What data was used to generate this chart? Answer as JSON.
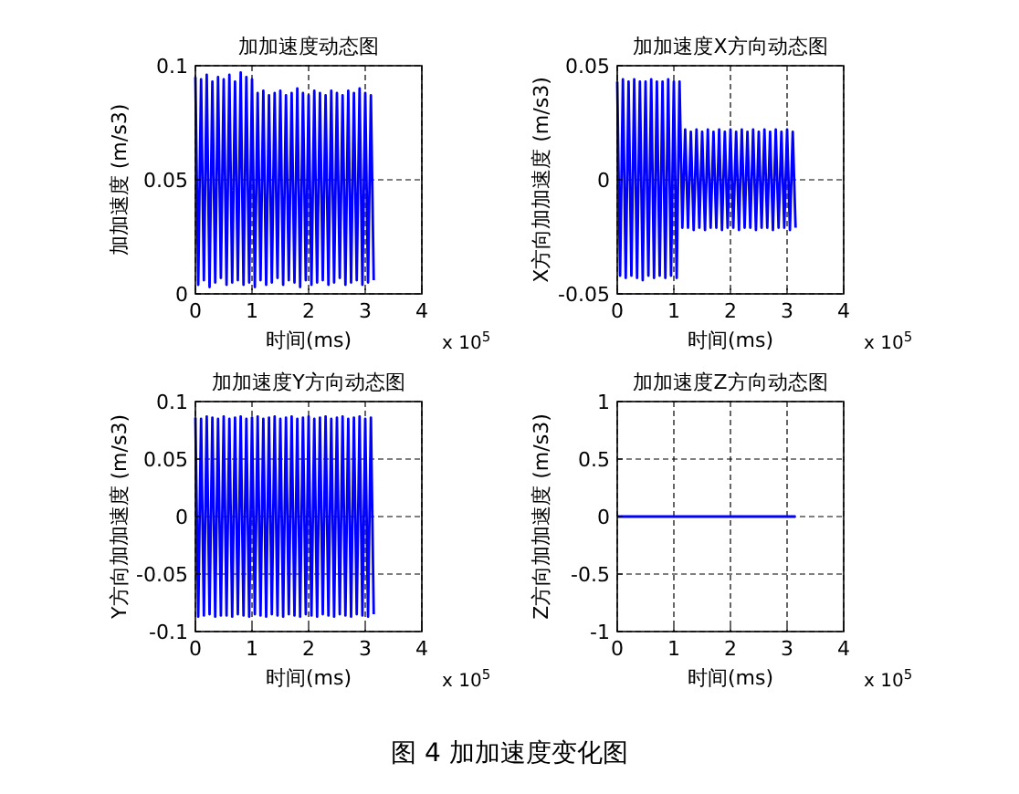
{
  "chart_data": [
    {
      "type": "line",
      "title": "加加速度动态图",
      "xlabel": "时间(ms)",
      "ylabel": "加加速度 (m/s3)",
      "annotations": [
        "x 10$^{5}$"
      ],
      "grid": true,
      "color": "#0000ff",
      "xlim": [
        0,
        4
      ],
      "xticks": [
        0,
        1,
        2,
        3,
        4
      ],
      "ylim": [
        0,
        0.1
      ],
      "yticks": [
        0,
        0.05,
        0.1
      ],
      "x": [
        0,
        0.05,
        0.1,
        0.15,
        0.2,
        0.25,
        0.3,
        0.35,
        0.4,
        0.45,
        0.5,
        0.55,
        0.6,
        0.65,
        0.7,
        0.75,
        0.8,
        0.85,
        0.9,
        0.95,
        1,
        1.05,
        1.1,
        1.15,
        1.2,
        1.25,
        1.3,
        1.35,
        1.4,
        1.45,
        1.5,
        1.55,
        1.6,
        1.65,
        1.7,
        1.75,
        1.8,
        1.85,
        1.9,
        1.95,
        2,
        2.05,
        2.1,
        2.15,
        2.2,
        2.25,
        2.3,
        2.35,
        2.4,
        2.45,
        2.5,
        2.55,
        2.6,
        2.65,
        2.7,
        2.75,
        2.8,
        2.85,
        2.9,
        2.95,
        3,
        3.05,
        3.1,
        3.15
      ],
      "values": [
        0.095,
        0.004,
        0.094,
        0.006,
        0.096,
        0.003,
        0.093,
        0.005,
        0.095,
        0.007,
        0.094,
        0.004,
        0.096,
        0.005,
        0.093,
        0.006,
        0.097,
        0.004,
        0.095,
        0.005,
        0.094,
        0.003,
        0.088,
        0.006,
        0.089,
        0.004,
        0.087,
        0.005,
        0.088,
        0.007,
        0.089,
        0.004,
        0.087,
        0.006,
        0.088,
        0.005,
        0.09,
        0.003,
        0.088,
        0.006,
        0.087,
        0.004,
        0.089,
        0.005,
        0.088,
        0.006,
        0.087,
        0.004,
        0.089,
        0.005,
        0.088,
        0.007,
        0.087,
        0.004,
        0.089,
        0.005,
        0.088,
        0.006,
        0.09,
        0.004,
        0.088,
        0.005,
        0.087,
        0.006
      ]
    },
    {
      "type": "line",
      "title": "加加速度X方向动态图",
      "xlabel": "时间(ms)",
      "ylabel": "X方向加加速度 (m/s3)",
      "annotations": [
        "x 10$^{5}$"
      ],
      "grid": true,
      "color": "#0000ff",
      "xlim": [
        0,
        4
      ],
      "xticks": [
        0,
        1,
        2,
        3,
        4
      ],
      "ylim": [
        -0.05,
        0.05
      ],
      "yticks": [
        -0.05,
        0,
        0.05
      ],
      "x": [
        0,
        0.05,
        0.1,
        0.15,
        0.2,
        0.25,
        0.3,
        0.35,
        0.4,
        0.45,
        0.5,
        0.55,
        0.6,
        0.65,
        0.7,
        0.75,
        0.8,
        0.85,
        0.9,
        0.95,
        1,
        1.05,
        1.1,
        1.15,
        1.2,
        1.25,
        1.3,
        1.35,
        1.4,
        1.45,
        1.5,
        1.55,
        1.6,
        1.65,
        1.7,
        1.75,
        1.8,
        1.85,
        1.9,
        1.95,
        2,
        2.05,
        2.1,
        2.15,
        2.2,
        2.25,
        2.3,
        2.35,
        2.4,
        2.45,
        2.5,
        2.55,
        2.6,
        2.65,
        2.7,
        2.75,
        2.8,
        2.85,
        2.9,
        2.95,
        3,
        3.05,
        3.1,
        3.15
      ],
      "values": [
        0.043,
        -0.042,
        0.044,
        -0.043,
        0.043,
        -0.042,
        0.044,
        -0.043,
        0.043,
        -0.044,
        0.043,
        -0.042,
        0.044,
        -0.043,
        0.043,
        -0.042,
        0.043,
        -0.043,
        0.044,
        -0.042,
        0.043,
        -0.043,
        0.043,
        -0.021,
        0.022,
        -0.021,
        0.021,
        -0.022,
        0.022,
        -0.021,
        0.021,
        -0.022,
        0.022,
        -0.021,
        0.021,
        -0.021,
        0.022,
        -0.022,
        0.021,
        -0.021,
        0.022,
        -0.021,
        0.021,
        -0.022,
        0.022,
        -0.021,
        0.021,
        -0.021,
        0.022,
        -0.022,
        0.021,
        -0.021,
        0.022,
        -0.021,
        0.021,
        -0.022,
        0.022,
        -0.021,
        0.021,
        -0.021,
        0.022,
        -0.022,
        0.021,
        -0.021
      ]
    },
    {
      "type": "line",
      "title": "加加速度Y方向动态图",
      "xlabel": "时间(ms)",
      "ylabel": "Y方向加加速度 (m/s3)",
      "annotations": [
        "x 10$^{5}$"
      ],
      "grid": true,
      "color": "#0000ff",
      "xlim": [
        0,
        4
      ],
      "xticks": [
        0,
        1,
        2,
        3,
        4
      ],
      "ylim": [
        -0.1,
        0.1
      ],
      "yticks": [
        -0.1,
        -0.05,
        0,
        0.05,
        0.1
      ],
      "x": [
        0,
        0.05,
        0.1,
        0.15,
        0.2,
        0.25,
        0.3,
        0.35,
        0.4,
        0.45,
        0.5,
        0.55,
        0.6,
        0.65,
        0.7,
        0.75,
        0.8,
        0.85,
        0.9,
        0.95,
        1,
        1.05,
        1.1,
        1.15,
        1.2,
        1.25,
        1.3,
        1.35,
        1.4,
        1.45,
        1.5,
        1.55,
        1.6,
        1.65,
        1.7,
        1.75,
        1.8,
        1.85,
        1.9,
        1.95,
        2,
        2.05,
        2.1,
        2.15,
        2.2,
        2.25,
        2.3,
        2.35,
        2.4,
        2.45,
        2.5,
        2.55,
        2.6,
        2.65,
        2.7,
        2.75,
        2.8,
        2.85,
        2.9,
        2.95,
        3,
        3.05,
        3.1,
        3.15
      ],
      "values": [
        0.086,
        -0.087,
        0.085,
        -0.086,
        0.087,
        -0.085,
        0.086,
        -0.087,
        0.085,
        -0.086,
        0.087,
        -0.086,
        0.085,
        -0.087,
        0.086,
        -0.085,
        0.087,
        -0.086,
        0.085,
        -0.087,
        0.086,
        -0.085,
        0.087,
        -0.086,
        0.085,
        -0.087,
        0.086,
        -0.085,
        0.087,
        -0.086,
        0.085,
        -0.087,
        0.086,
        -0.085,
        0.087,
        -0.086,
        0.085,
        -0.087,
        0.086,
        -0.085,
        0.087,
        -0.086,
        0.085,
        -0.087,
        0.086,
        -0.085,
        0.087,
        -0.086,
        0.085,
        -0.087,
        0.086,
        -0.085,
        0.087,
        -0.086,
        0.085,
        -0.087,
        0.086,
        -0.085,
        0.087,
        -0.086,
        0.085,
        -0.087,
        0.086,
        -0.085
      ]
    },
    {
      "type": "line",
      "title": "加加速度Z方向动态图",
      "xlabel": "时间(ms)",
      "ylabel": "Z方向加加速度 (m/s3)",
      "annotations": [
        "x 10$^{5}$"
      ],
      "grid": true,
      "color": "#0000ff",
      "xlim": [
        0,
        4
      ],
      "xticks": [
        0,
        1,
        2,
        3,
        4
      ],
      "ylim": [
        -1,
        1
      ],
      "yticks": [
        -1,
        -0.5,
        0,
        0.5,
        1
      ],
      "x": [
        0,
        1,
        2,
        3.15
      ],
      "values": [
        0,
        0,
        0,
        0
      ]
    },
    {
      "type": "other",
      "title": "图 4 加加速度变化图"
    }
  ]
}
